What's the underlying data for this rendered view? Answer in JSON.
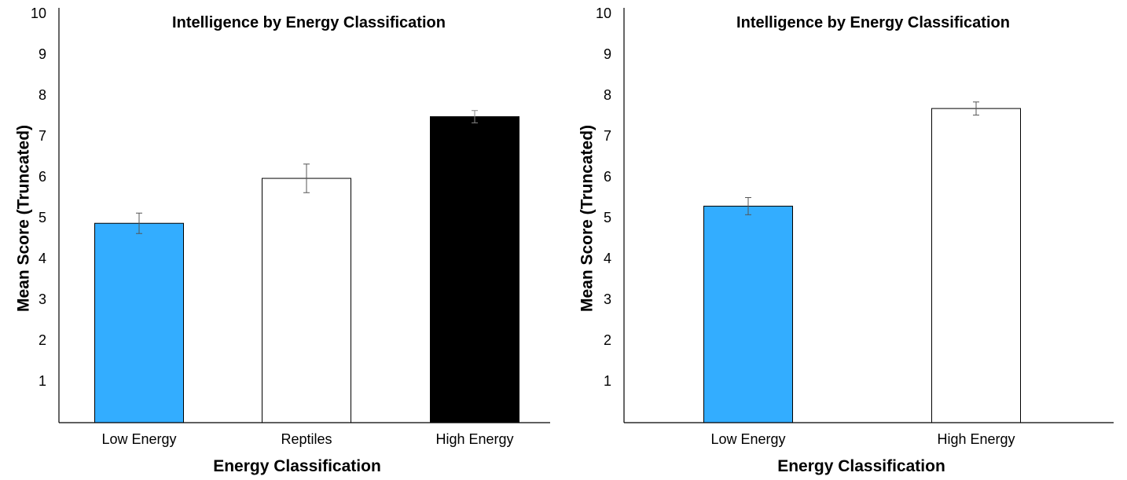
{
  "chart_data": [
    {
      "type": "bar",
      "title": "Intelligence by Energy Classification",
      "xlabel": "Energy Classification",
      "ylabel": "Mean Score (Truncated)",
      "ylim": [
        0,
        10
      ],
      "yticks": [
        1,
        2,
        3,
        4,
        5,
        6,
        7,
        8,
        9,
        10
      ],
      "grid": false,
      "categories": [
        "Low Energy",
        "Reptiles",
        "High Energy"
      ],
      "values": [
        4.88,
        5.98,
        7.49
      ],
      "error": [
        0.25,
        0.35,
        0.15
      ],
      "colors": [
        "#33adff",
        "#ffffff",
        "#000000"
      ]
    },
    {
      "type": "bar",
      "title": "Intelligence by Energy Classification",
      "xlabel": "Energy Classification",
      "ylabel": "Mean Score (Truncated)",
      "ylim": [
        0,
        10
      ],
      "yticks": [
        1,
        2,
        3,
        4,
        5,
        6,
        7,
        8,
        9,
        10
      ],
      "grid": false,
      "categories": [
        "Low Energy",
        "High Energy"
      ],
      "values": [
        5.3,
        7.69
      ],
      "error": [
        0.21,
        0.16
      ],
      "colors": [
        "#33adff",
        "#ffffff"
      ]
    }
  ]
}
